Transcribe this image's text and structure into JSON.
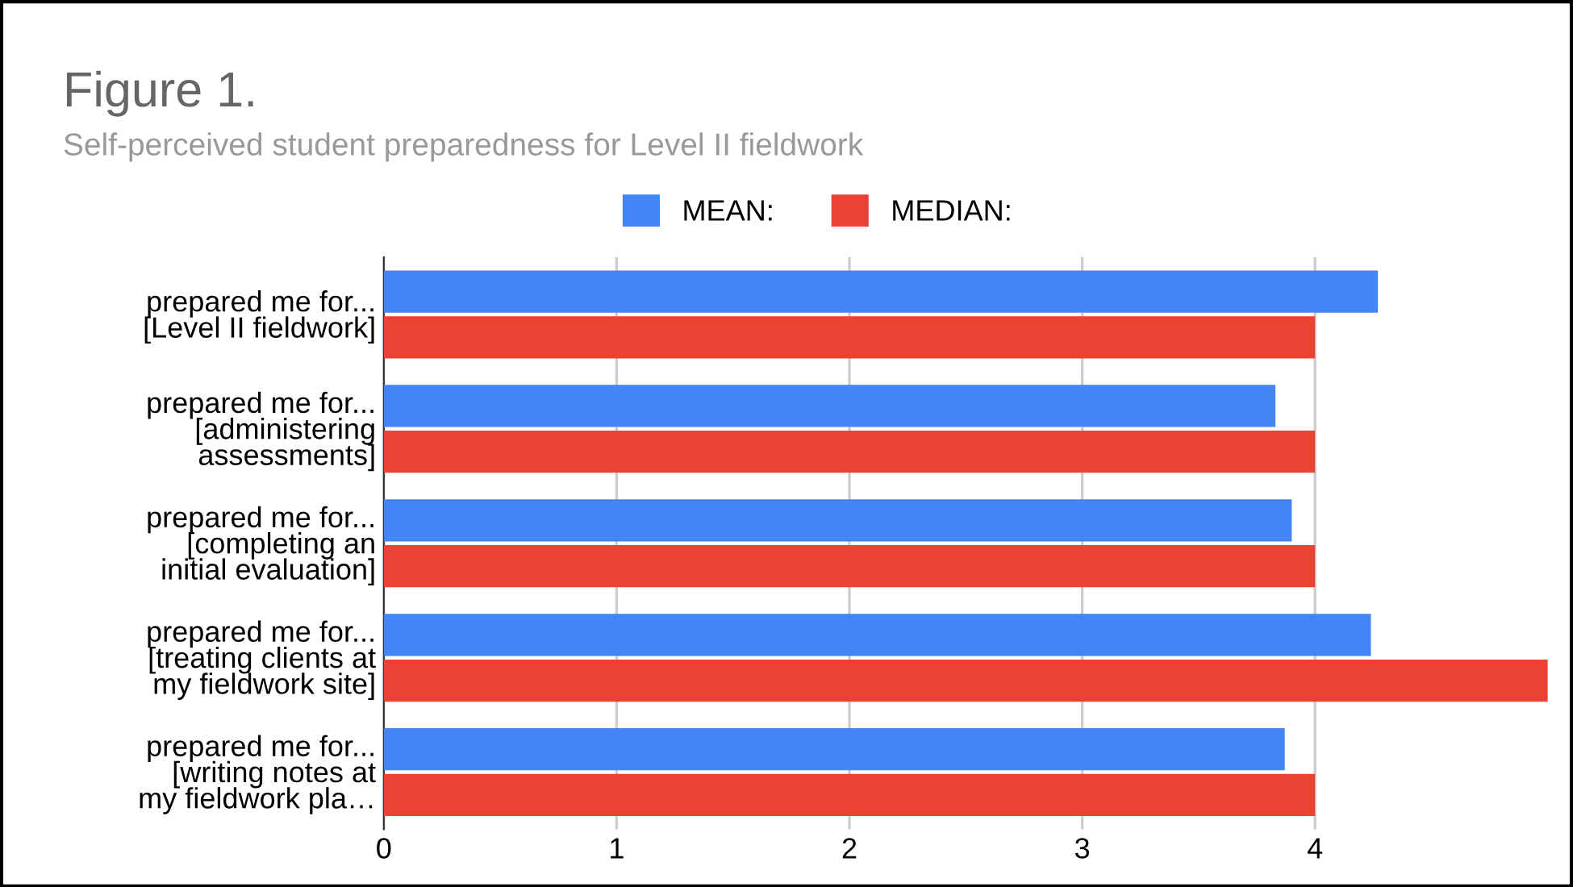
{
  "chart_data": {
    "type": "bar",
    "orientation": "horizontal",
    "title": "Figure 1.",
    "subtitle": "Self-perceived student preparedness for Level II fieldwork",
    "categories": [
      "prepared me for...\n[Level II fieldwork]",
      "prepared me for...\n[administering\nassessments]",
      "prepared me for...\n[completing an\ninitial evaluation]",
      "prepared me for...\n[treating clients at\nmy fieldwork site]",
      "prepared me for...\n[writing notes at\nmy fieldwork pla…"
    ],
    "series": [
      {
        "name": "MEAN:",
        "color": "#4285f4",
        "values": [
          4.27,
          3.83,
          3.9,
          4.24,
          3.87
        ]
      },
      {
        "name": "MEDIAN:",
        "color": "#ea4335",
        "values": [
          4,
          4,
          4,
          5,
          4
        ]
      }
    ],
    "xlim": [
      0,
      5
    ],
    "xticks": [
      0,
      1,
      2,
      3,
      4
    ],
    "grid": "x",
    "legend": "top"
  }
}
